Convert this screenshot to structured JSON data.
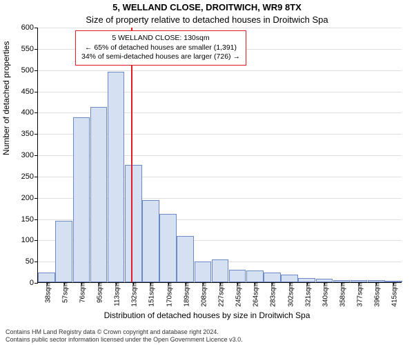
{
  "chart": {
    "type": "histogram",
    "title": "5, WELLAND CLOSE, DROITWICH, WR9 8TX",
    "subtitle": "Size of property relative to detached houses in Droitwich Spa",
    "xlabel": "Distribution of detached houses by size in Droitwich Spa",
    "ylabel": "Number of detached properties",
    "background_color": "#ffffff",
    "grid_color": "#e0e0e0",
    "axis_color": "#000000",
    "bar_fill": "#d5e1f2",
    "bar_border": "#6b89c4",
    "marker_color": "#e11b22",
    "marker_value": 130,
    "yaxis": {
      "min": 0,
      "max": 600,
      "step": 50
    },
    "xaxis": {
      "labels": [
        "38sqm",
        "57sqm",
        "76sqm",
        "95sqm",
        "113sqm",
        "132sqm",
        "151sqm",
        "170sqm",
        "189sqm",
        "208sqm",
        "227sqm",
        "245sqm",
        "264sqm",
        "283sqm",
        "302sqm",
        "321sqm",
        "340sqm",
        "358sqm",
        "377sqm",
        "396sqm",
        "415sqm"
      ]
    },
    "values": [
      22,
      145,
      388,
      412,
      495,
      276,
      193,
      160,
      108,
      48,
      54,
      30,
      28,
      22,
      18,
      10,
      8,
      5,
      5,
      5,
      4
    ],
    "info_box": {
      "line1": "5 WELLAND CLOSE: 130sqm",
      "line2": "← 65% of detached houses are smaller (1,391)",
      "line3": "34% of semi-detached houses are larger (726) →",
      "border_color": "#e11b22"
    },
    "footer_line1": "Contains HM Land Registry data © Crown copyright and database right 2024.",
    "footer_line2": "Contains public sector information licensed under the Open Government Licence v3.0."
  }
}
